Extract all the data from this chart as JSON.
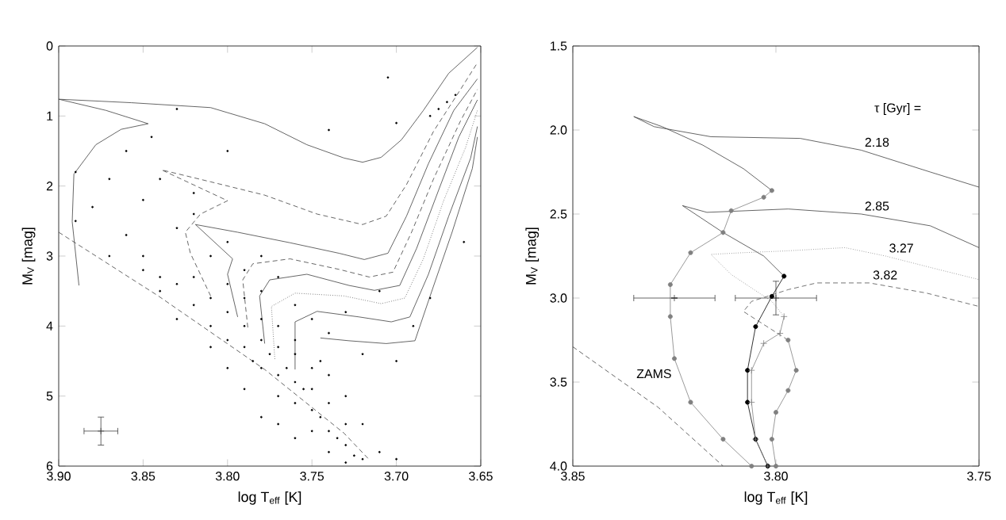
{
  "chart_data": [
    {
      "type": "scatter",
      "xlabel": "log T$_{eff}$  [K]",
      "ylabel": "M$_{V}$  [mag]",
      "xlim": [
        3.9,
        3.65
      ],
      "ylim": [
        6,
        0
      ],
      "xticks": [
        {
          "value": 3.9,
          "label": "3.90"
        },
        3.85,
        {
          "value": 3.8,
          "label": "3.80"
        },
        3.75,
        {
          "value": 3.7,
          "label": "3.70"
        },
        3.65
      ],
      "yticks": [
        0,
        1,
        2,
        3,
        4,
        5,
        6
      ],
      "series": [
        {
          "color": "#000000",
          "marker": "circle",
          "x": [
            3.85,
            3.84,
            3.83,
            3.83,
            3.82,
            3.82,
            3.81,
            3.81,
            3.8,
            3.8,
            3.8,
            3.79,
            3.79,
            3.79,
            3.785,
            3.78,
            3.78,
            3.78,
            3.775,
            3.77,
            3.77,
            3.77,
            3.77,
            3.765,
            3.76,
            3.76,
            3.76,
            3.755,
            3.75,
            3.75,
            3.75,
            3.75,
            3.745,
            3.74,
            3.74,
            3.74,
            3.735,
            3.73,
            3.73,
            3.73,
            3.725,
            3.72,
            3.76,
            3.78,
            3.79,
            3.8,
            3.81,
            3.77,
            3.74,
            3.72,
            3.71,
            3.7,
            3.76,
            3.745,
            3.73,
            3.88,
            3.89,
            3.87,
            3.86,
            3.85,
            3.84,
            3.86,
            3.83,
            3.82,
            3.81,
            3.79,
            3.78,
            3.76,
            3.75,
            3.74,
            3.72,
            3.7,
            3.69,
            3.68,
            3.66,
            3.68,
            3.67,
            3.675,
            3.665,
            3.705,
            3.7,
            3.74,
            3.8,
            3.83,
            3.845,
            3.82,
            3.8,
            3.78,
            3.77,
            3.73,
            3.71,
            3.89,
            3.87,
            3.85,
            3.84
          ],
          "values": [
            3.2,
            3.5,
            3.4,
            3.9,
            3.7,
            3.3,
            4.0,
            3.6,
            4.2,
            3.8,
            3.4,
            4.3,
            4.0,
            3.6,
            4.5,
            4.2,
            3.9,
            4.6,
            4.4,
            4.7,
            4.3,
            4.0,
            5.0,
            4.6,
            4.8,
            5.1,
            4.4,
            4.9,
            5.2,
            4.9,
            5.5,
            4.6,
            5.3,
            5.5,
            5.1,
            5.8,
            5.6,
            5.7,
            5.4,
            5.95,
            5.85,
            5.9,
            5.6,
            5.3,
            4.9,
            4.6,
            4.3,
            5.4,
            4.7,
            5.4,
            5.8,
            5.9,
            4.2,
            4.5,
            5.0,
            2.3,
            2.5,
            3.0,
            2.7,
            2.2,
            1.9,
            1.5,
            2.6,
            2.1,
            3.0,
            3.2,
            3.5,
            3.7,
            3.9,
            4.1,
            4.4,
            4.5,
            4.0,
            3.6,
            2.8,
            1.0,
            0.8,
            0.9,
            0.7,
            0.45,
            1.1,
            1.2,
            1.5,
            0.9,
            1.3,
            2.4,
            2.8,
            3.0,
            3.3,
            3.8,
            3.5,
            1.8,
            1.9,
            3.0,
            3.3
          ]
        },
        {
          "type": "line",
          "color": "#404040",
          "line_style": "solid",
          "marker": "none",
          "x": [
            3.888,
            3.892,
            3.891,
            3.878,
            3.863,
            3.847,
            3.872,
            3.9,
            3.857,
            3.81,
            3.778,
            3.753,
            3.731,
            3.72,
            3.709,
            3.697,
            3.684,
            3.669,
            3.652
          ],
          "values": [
            3.42,
            2.51,
            1.83,
            1.41,
            1.19,
            1.11,
            0.92,
            0.76,
            0.81,
            0.88,
            1.11,
            1.41,
            1.6,
            1.66,
            1.59,
            1.34,
            0.92,
            0.39,
            0.02
          ]
        },
        {
          "type": "line",
          "color": "#404040",
          "line_style": "dashed",
          "marker": "none",
          "x": [
            3.81,
            3.822,
            3.825,
            3.816,
            3.8,
            3.839,
            3.81,
            3.778,
            3.747,
            3.72,
            3.706,
            3.694,
            3.678,
            3.662,
            3.652
          ],
          "values": [
            3.57,
            2.96,
            2.66,
            2.4,
            2.21,
            1.77,
            1.94,
            2.13,
            2.4,
            2.55,
            2.43,
            1.98,
            1.22,
            0.62,
            0.24
          ]
        },
        {
          "type": "line",
          "color": "#404040",
          "line_style": "solid",
          "marker": "none",
          "x": [
            3.794,
            3.8,
            3.797,
            3.819,
            3.794,
            3.763,
            3.734,
            3.719,
            3.705,
            3.694,
            3.681,
            3.666,
            3.652
          ],
          "values": [
            3.87,
            3.26,
            3.04,
            2.55,
            2.66,
            2.81,
            2.96,
            3.05,
            2.96,
            2.43,
            1.68,
            0.92,
            0.47
          ]
        },
        {
          "type": "line",
          "color": "#404040",
          "line_style": "dashed",
          "marker": "none",
          "x": [
            3.788,
            3.791,
            3.785,
            3.763,
            3.734,
            3.716,
            3.702,
            3.691,
            3.678,
            3.662,
            3.652
          ],
          "values": [
            4.02,
            3.34,
            3.11,
            3.04,
            3.19,
            3.3,
            3.23,
            2.66,
            1.9,
            1.07,
            0.62
          ]
        },
        {
          "type": "line",
          "color": "#404040",
          "line_style": "solid",
          "marker": "none",
          "x": [
            3.778,
            3.781,
            3.775,
            3.753,
            3.728,
            3.713,
            3.698,
            3.688,
            3.675,
            3.663,
            3.652
          ],
          "values": [
            4.25,
            3.57,
            3.34,
            3.26,
            3.42,
            3.49,
            3.42,
            2.89,
            2.06,
            1.3,
            0.77
          ]
        },
        {
          "type": "line",
          "color": "#404040",
          "line_style": "dotted",
          "marker": "none",
          "x": [
            3.772,
            3.774,
            3.76,
            3.731,
            3.709,
            3.695,
            3.684,
            3.672,
            3.659,
            3.652
          ],
          "values": [
            4.47,
            3.72,
            3.53,
            3.57,
            3.68,
            3.6,
            3.04,
            2.21,
            1.45,
            0.92
          ]
        },
        {
          "type": "line",
          "color": "#404040",
          "line_style": "solid",
          "marker": "none",
          "x": [
            3.76,
            3.76,
            3.747,
            3.722,
            3.703,
            3.692,
            3.681,
            3.669,
            3.656,
            3.652
          ],
          "values": [
            4.62,
            3.94,
            3.79,
            3.87,
            3.94,
            3.87,
            3.26,
            2.43,
            1.6,
            1.15
          ]
        },
        {
          "type": "line",
          "color": "#404040",
          "line_style": "solid",
          "marker": "none",
          "x": [
            3.745,
            3.728,
            3.706,
            3.689,
            3.68,
            3.667,
            3.655,
            3.652
          ],
          "values": [
            4.17,
            4.21,
            4.25,
            4.21,
            3.57,
            2.66,
            1.75,
            1.3
          ]
        },
        {
          "type": "line",
          "color": "#404040",
          "line_style": "dashed",
          "marker": "none",
          "x": [
            3.9,
            3.841,
            3.778,
            3.731,
            3.716
          ],
          "values": [
            2.66,
            3.57,
            4.62,
            5.53,
            5.91
          ]
        },
        {
          "color": "#404040",
          "marker": "cross",
          "x": [
            3.875
          ],
          "values": [
            5.5
          ],
          "xerrors": [
            0.01
          ],
          "errors": [
            0.2
          ]
        }
      ]
    },
    {
      "type": "line",
      "xlabel": "log T$_{eff}$  [K]",
      "ylabel": "M$_{V}$  [mag]",
      "xlim": [
        3.85,
        3.75
      ],
      "ylim": [
        4.0,
        1.5
      ],
      "xticks": [
        3.85,
        {
          "value": 3.8,
          "label": "3.80"
        },
        3.75
      ],
      "yticks": [
        1.5,
        {
          "value": 2.0,
          "label": "2.0"
        },
        2.5,
        {
          "value": 3.0,
          "label": "3.0"
        },
        3.5,
        {
          "value": 4.0,
          "label": "4.0"
        }
      ],
      "annotations": [
        "τ [Gyr] =",
        "ZAMS"
      ],
      "series": [
        {
          "name": "2.18",
          "color": "#404040",
          "line_style": "solid",
          "marker": "none",
          "x": [
            3.801,
            3.808,
            3.818,
            3.828,
            3.835,
            3.83,
            3.816,
            3.794,
            3.779,
            3.762,
            3.75
          ],
          "values": [
            2.36,
            2.23,
            2.09,
            1.98,
            1.92,
            1.98,
            2.04,
            2.05,
            2.12,
            2.25,
            2.34
          ]
        },
        {
          "name": "2.85",
          "color": "#404040",
          "line_style": "solid",
          "marker": "none",
          "x": [
            3.798,
            3.803,
            3.813,
            3.823,
            3.817,
            3.797,
            3.779,
            3.762,
            3.75
          ],
          "values": [
            2.87,
            2.75,
            2.61,
            2.45,
            2.49,
            2.47,
            2.5,
            2.57,
            2.7
          ]
        },
        {
          "name": "3.27",
          "color": "#707070",
          "line_style": "dotted",
          "marker": "none",
          "x": [
            3.798,
            3.801,
            3.811,
            3.816,
            3.808,
            3.798,
            3.783,
            3.773,
            3.76,
            3.75
          ],
          "values": [
            3.11,
            3.02,
            2.86,
            2.74,
            2.73,
            2.72,
            2.7,
            2.75,
            2.83,
            2.89
          ]
        },
        {
          "name": "3.82",
          "color": "#505050",
          "line_style": "dashed",
          "marker": "none",
          "x": [
            3.797,
            3.808,
            3.806,
            3.797,
            3.79,
            3.777,
            3.763,
            3.75
          ],
          "values": [
            3.25,
            3.08,
            3.02,
            2.95,
            2.91,
            2.91,
            2.97,
            3.05
          ]
        },
        {
          "type": "line",
          "color": "#808080",
          "line_style": "solid",
          "marker": "circle",
          "x": [
            3.801,
            3.803,
            3.811,
            3.813,
            3.821,
            3.826,
            3.826,
            3.825,
            3.821,
            3.813,
            3.806
          ],
          "values": [
            2.36,
            2.4,
            2.48,
            2.61,
            2.73,
            2.92,
            3.11,
            3.36,
            3.62,
            3.84,
            4.0
          ]
        },
        {
          "type": "line",
          "color": "#000000",
          "line_style": "solid",
          "marker": "circle",
          "x": [
            3.798,
            3.801,
            3.805,
            3.807,
            3.807,
            3.805,
            3.802
          ],
          "values": [
            2.87,
            2.99,
            3.17,
            3.43,
            3.62,
            3.84,
            4.0
          ]
        },
        {
          "type": "line",
          "color": "#808080",
          "line_style": "solid",
          "marker": "cross",
          "x": [
            3.798,
            3.799,
            3.803,
            3.806,
            3.806,
            3.805,
            3.802
          ],
          "values": [
            3.11,
            3.21,
            3.27,
            3.43,
            3.62,
            3.84,
            4.0
          ]
        },
        {
          "type": "line",
          "color": "#808080",
          "line_style": "solid",
          "marker": "circle",
          "x": [
            3.797,
            3.795,
            3.797,
            3.8,
            3.801,
            3.8
          ],
          "values": [
            3.25,
            3.43,
            3.55,
            3.68,
            3.84,
            4.0
          ]
        },
        {
          "type": "line",
          "color": "#404040",
          "line_style": "dashed",
          "marker": "none",
          "x": [
            3.85,
            3.829,
            3.813
          ],
          "values": [
            3.29,
            3.65,
            4.0
          ]
        },
        {
          "type": "scatter",
          "color": "#404040",
          "marker": "cross",
          "x": [
            3.825,
            3.8
          ],
          "values": [
            3.0,
            3.0
          ],
          "xerrors": [
            0.01,
            0.01
          ],
          "errors": [
            null,
            0.1
          ]
        }
      ]
    }
  ]
}
